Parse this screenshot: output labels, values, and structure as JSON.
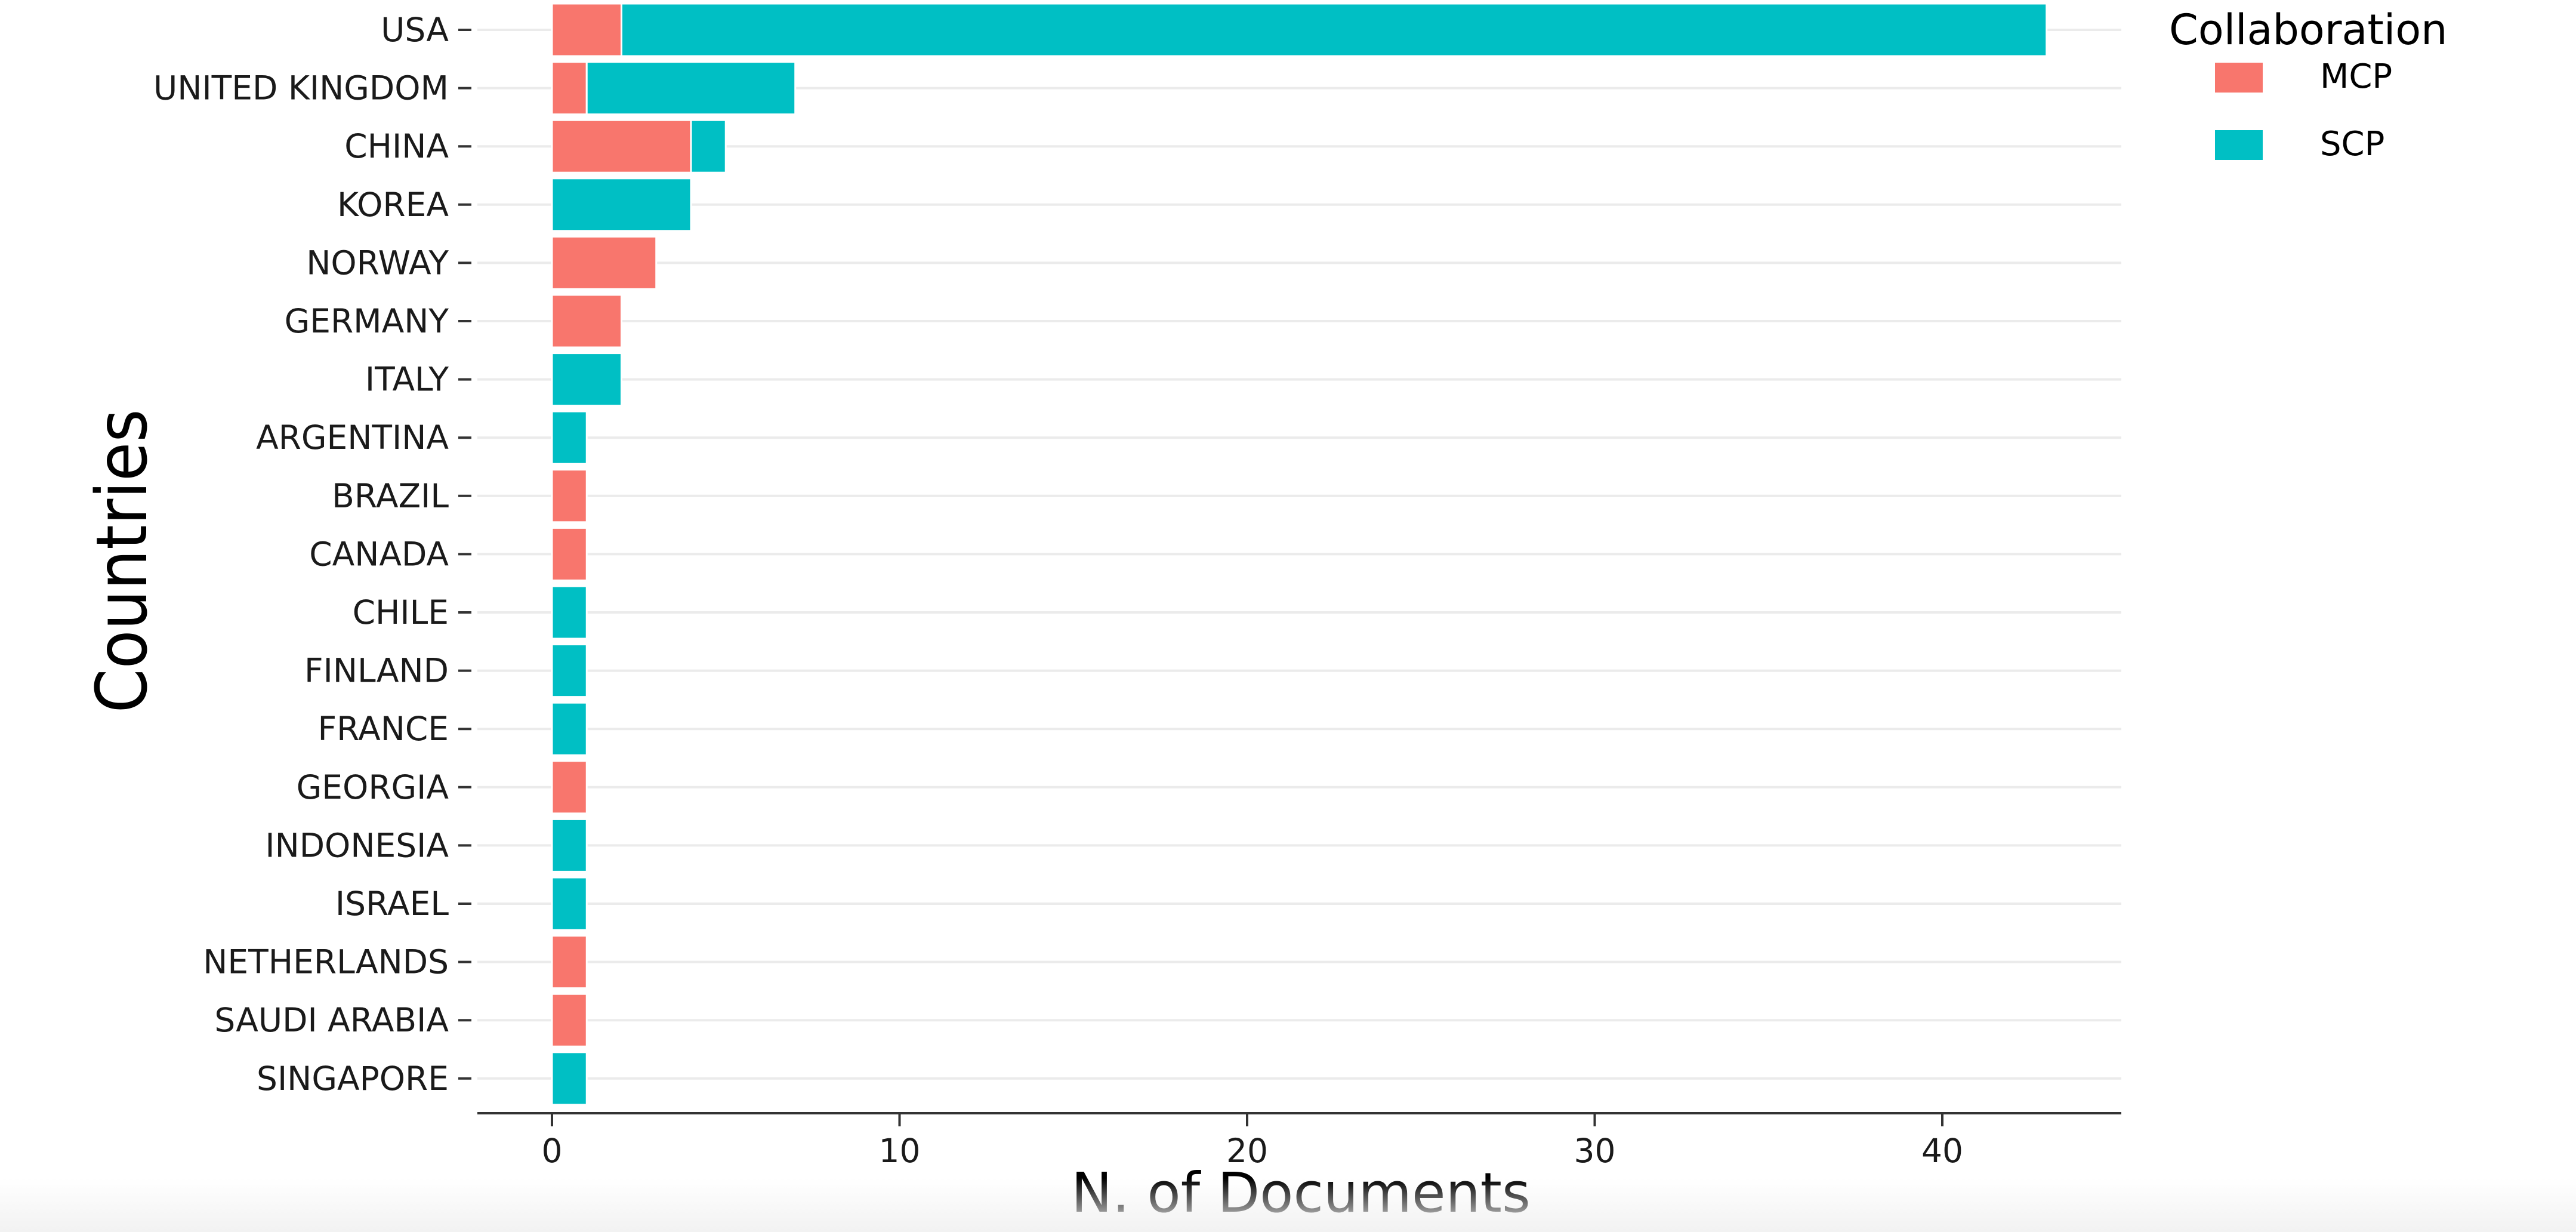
{
  "chart_data": {
    "type": "bar",
    "orientation": "horizontal",
    "stacked": true,
    "title": "",
    "xlabel": "N. of Documents",
    "ylabel": "Countries",
    "xlim": [
      0,
      45
    ],
    "xticks": [
      0,
      10,
      20,
      30,
      40
    ],
    "grid": true,
    "legend_position": "top-right",
    "categories": [
      "USA",
      "UNITED KINGDOM",
      "CHINA",
      "KOREA",
      "NORWAY",
      "GERMANY",
      "ITALY",
      "ARGENTINA",
      "BRAZIL",
      "CANADA",
      "CHILE",
      "FINLAND",
      "FRANCE",
      "GEORGIA",
      "INDONESIA",
      "ISRAEL",
      "NETHERLANDS",
      "SAUDI ARABIA",
      "SINGAPORE"
    ],
    "series": [
      {
        "name": "MCP",
        "color": "#F8766D",
        "values": [
          2,
          1,
          4,
          0,
          3,
          2,
          0,
          0,
          1,
          1,
          0,
          0,
          0,
          1,
          0,
          0,
          1,
          1,
          0
        ]
      },
      {
        "name": "SCP",
        "color": "#00BFC4",
        "values": [
          41,
          6,
          1,
          4,
          0,
          0,
          2,
          1,
          0,
          0,
          1,
          1,
          1,
          0,
          1,
          1,
          0,
          0,
          1
        ]
      }
    ],
    "legend_title": "Collaboration"
  }
}
